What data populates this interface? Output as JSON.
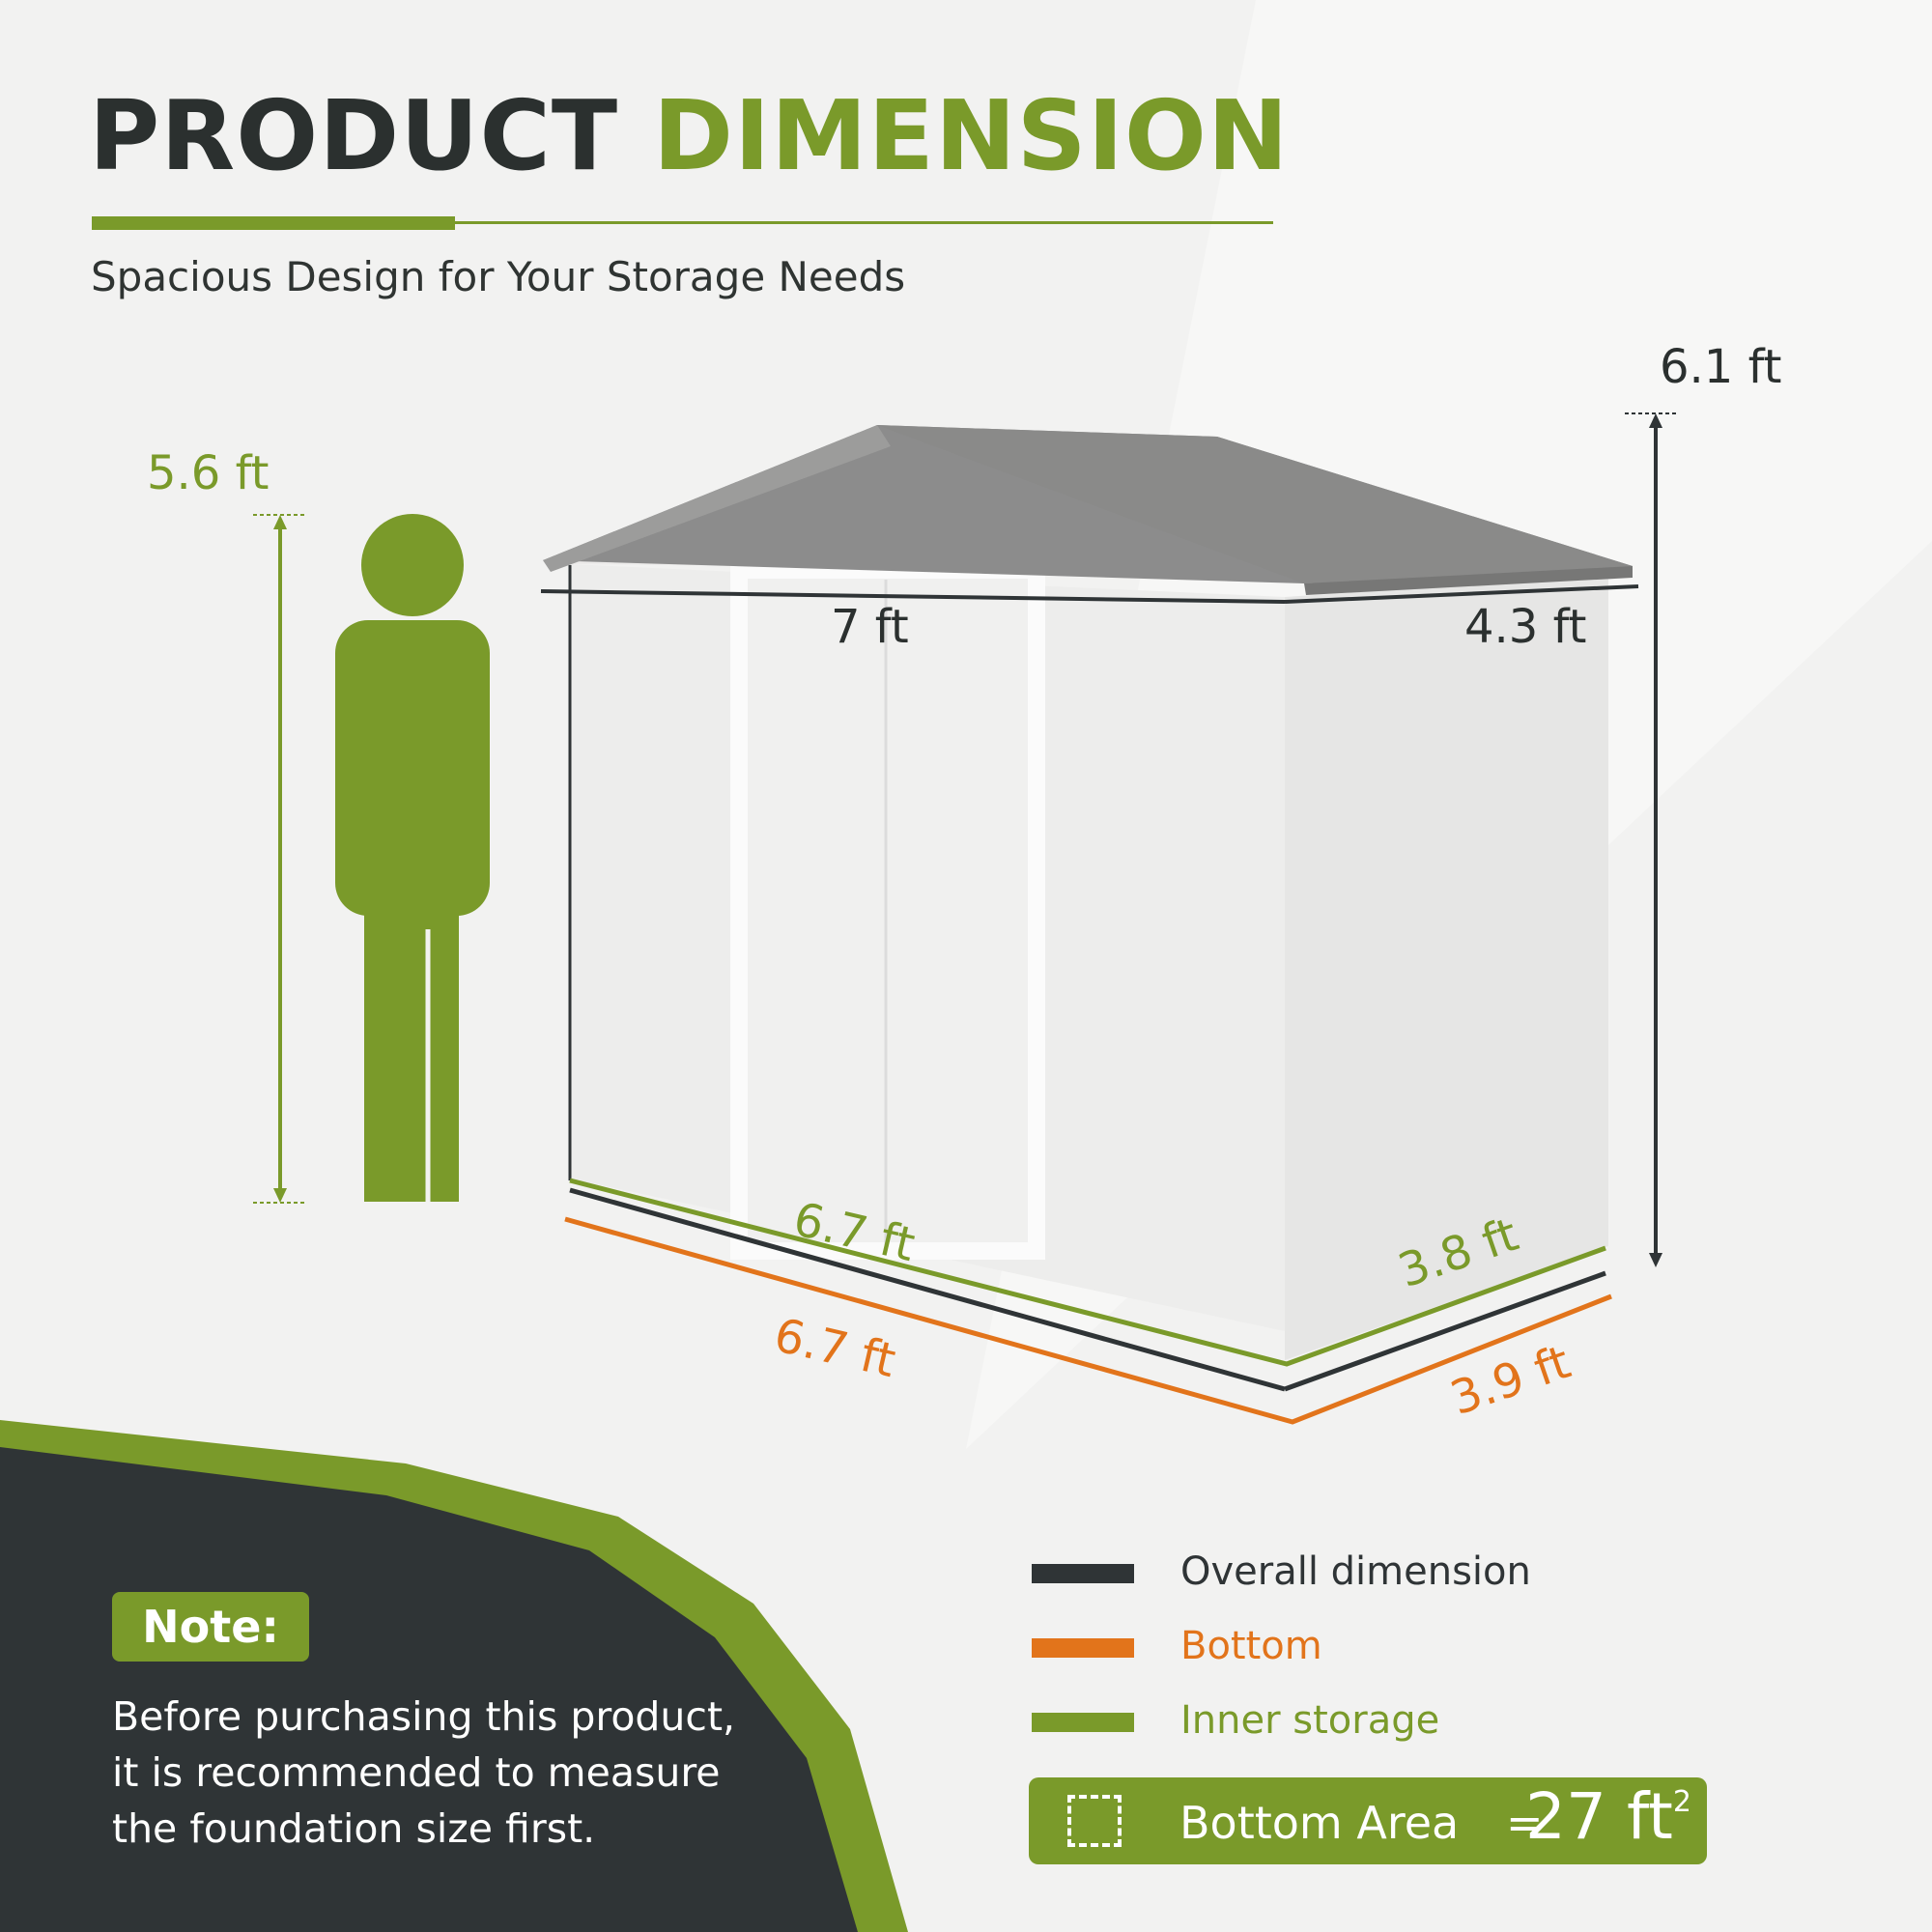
{
  "title": {
    "part1": "PRODUCT",
    "part2": "DIMENSION"
  },
  "subtitle": "Spacious Design for Your Storage Needs",
  "dimensions": {
    "person_height": "5.6 ft",
    "overall_height": "6.1 ft",
    "overall_width": "7 ft",
    "overall_depth": "4.3 ft",
    "inner_width": "6.7 ft",
    "inner_depth": "3.8 ft",
    "bottom_width": "6.7 ft",
    "bottom_depth": "3.9 ft"
  },
  "note": {
    "label": "Note:",
    "lines": [
      "Before purchasing this product,",
      "it is recommended to measure",
      "the foundation size first."
    ]
  },
  "legend": [
    {
      "label": "Overall dimension",
      "color": "#2f3436"
    },
    {
      "label": "Bottom",
      "color": "#e2741b"
    },
    {
      "label": "Inner storage",
      "color": "#7a9a2a"
    }
  ],
  "bottom_area": {
    "label": "Bottom Area",
    "equals": "=",
    "value": "27 ft",
    "unit_power": "2"
  },
  "colors": {
    "accent_green": "#7a9a2a",
    "dark": "#2b302f",
    "orange": "#e2741b",
    "background": "#f2f2f1"
  }
}
